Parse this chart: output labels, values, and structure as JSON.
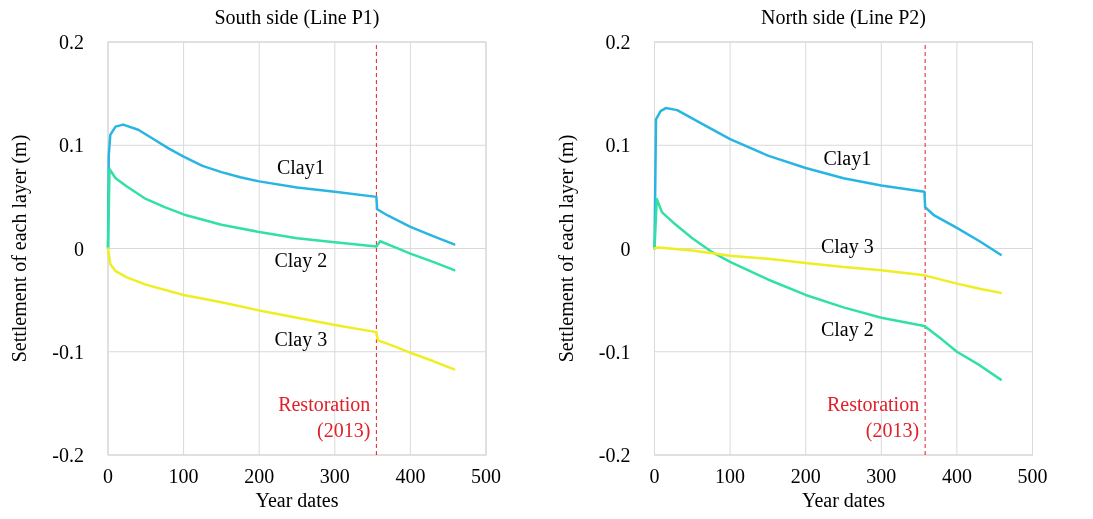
{
  "chart_data": [
    {
      "type": "line",
      "title": "South side (Line P1)",
      "xlabel": "Year dates",
      "ylabel": "Settlement of each layer (m)",
      "xlim": [
        0,
        500
      ],
      "xticks": [
        0,
        100,
        200,
        300,
        400,
        500
      ],
      "ylim": [
        -0.2,
        0.2
      ],
      "yticks": [
        -0.2,
        -0.1,
        0,
        0.1,
        0.2
      ],
      "grid": true,
      "line_style": "solid",
      "series": [
        {
          "name": "Clay1",
          "color": "#29b5e3",
          "x": [
            0,
            1,
            3,
            10,
            20,
            40,
            60,
            80,
            100,
            125,
            150,
            175,
            200,
            250,
            300,
            355,
            356,
            370,
            400,
            430,
            458
          ],
          "values": [
            0,
            0.09,
            0.11,
            0.118,
            0.12,
            0.115,
            0.106,
            0.097,
            0.089,
            0.08,
            0.074,
            0.069,
            0.065,
            0.059,
            0.055,
            0.05,
            0.038,
            0.032,
            0.021,
            0.012,
            0.004
          ]
        },
        {
          "name": "Clay 2",
          "color": "#33e0a4",
          "x": [
            0,
            2,
            10,
            25,
            50,
            75,
            100,
            150,
            200,
            250,
            300,
            355,
            360,
            380,
            400,
            430,
            458
          ],
          "values": [
            0,
            0.077,
            0.068,
            0.06,
            0.048,
            0.04,
            0.033,
            0.023,
            0.016,
            0.01,
            0.006,
            0.002,
            0.007,
            0.001,
            -0.005,
            -0.013,
            -0.021
          ]
        },
        {
          "name": "Clay 3",
          "color": "#eeee22",
          "x": [
            0,
            3,
            10,
            25,
            50,
            100,
            150,
            200,
            250,
            300,
            355,
            357,
            380,
            400,
            430,
            458
          ],
          "values": [
            0,
            -0.015,
            -0.022,
            -0.028,
            -0.035,
            -0.045,
            -0.052,
            -0.06,
            -0.067,
            -0.074,
            -0.081,
            -0.089,
            -0.095,
            -0.101,
            -0.109,
            -0.117
          ]
        }
      ],
      "ref_lines": [
        {
          "axis": "x",
          "value": 355,
          "label": "Restoration\n(2013)",
          "color": "#e0202a",
          "line_style": "dashed"
        }
      ]
    },
    {
      "type": "line",
      "title": "North side (Line P2)",
      "xlabel": "Year dates",
      "ylabel": "Settlement of each layer (m)",
      "xlim": [
        0,
        500
      ],
      "xticks": [
        0,
        100,
        200,
        300,
        400,
        500
      ],
      "ylim": [
        -0.2,
        0.2
      ],
      "yticks": [
        -0.2,
        -0.1,
        0,
        0.1,
        0.2
      ],
      "grid": true,
      "line_style": "solid",
      "series": [
        {
          "name": "Clay1",
          "color": "#29b5e3",
          "x": [
            0,
            2,
            8,
            15,
            30,
            60,
            100,
            150,
            200,
            250,
            300,
            357,
            358,
            370,
            400,
            430,
            458
          ],
          "values": [
            0,
            0.125,
            0.133,
            0.136,
            0.134,
            0.122,
            0.106,
            0.09,
            0.078,
            0.068,
            0.061,
            0.055,
            0.04,
            0.032,
            0.02,
            0.007,
            -0.006
          ]
        },
        {
          "name": "Clay 2",
          "color": "#33e0a4",
          "x": [
            0,
            3,
            10,
            25,
            50,
            75,
            100,
            150,
            200,
            250,
            300,
            357,
            380,
            400,
            430,
            458
          ],
          "values": [
            0,
            0.048,
            0.035,
            0.025,
            0.01,
            -0.003,
            -0.013,
            -0.03,
            -0.045,
            -0.057,
            -0.067,
            -0.075,
            -0.088,
            -0.1,
            -0.113,
            -0.127
          ]
        },
        {
          "name": "Clay 3",
          "color": "#eeee22",
          "x": [
            0,
            5,
            50,
            100,
            150,
            200,
            250,
            300,
            357,
            400,
            430,
            458
          ],
          "values": [
            0,
            0.001,
            -0.002,
            -0.007,
            -0.01,
            -0.014,
            -0.018,
            -0.021,
            -0.026,
            -0.034,
            -0.039,
            -0.043
          ]
        }
      ],
      "ref_lines": [
        {
          "axis": "x",
          "value": 358,
          "label": "Restoration\n(2013)",
          "color": "#e0202a",
          "line_style": "dashed"
        }
      ]
    }
  ]
}
